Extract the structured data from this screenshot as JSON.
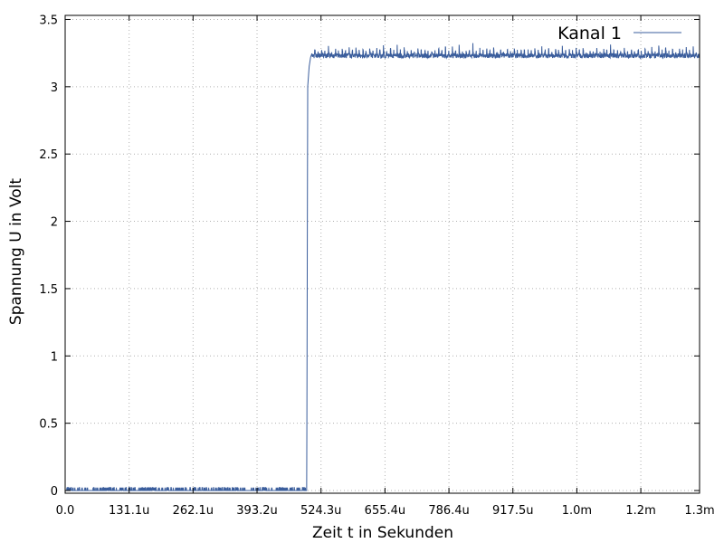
{
  "chart_data": {
    "type": "line",
    "xlabel": "Zeit t in Sekunden",
    "ylabel": "Spannung U in Volt",
    "xlim": [
      0,
      0.0013
    ],
    "ylim": [
      -0.02,
      3.53
    ],
    "x_ticks": [
      {
        "value": 0.0,
        "label": "0.0"
      },
      {
        "value": 0.0001311,
        "label": "131.1u"
      },
      {
        "value": 0.0002621,
        "label": "262.1u"
      },
      {
        "value": 0.0003932,
        "label": "393.2u"
      },
      {
        "value": 0.0005243,
        "label": "524.3u"
      },
      {
        "value": 0.0006554,
        "label": "655.4u"
      },
      {
        "value": 0.0007864,
        "label": "786.4u"
      },
      {
        "value": 0.0009175,
        "label": "917.5u"
      },
      {
        "value": 0.0010486,
        "label": "1.0m"
      },
      {
        "value": 0.0011796,
        "label": "1.2m"
      },
      {
        "value": 0.0013,
        "label": "1.3m"
      }
    ],
    "y_ticks": [
      {
        "value": 0,
        "label": "0"
      },
      {
        "value": 0.5,
        "label": "0.5"
      },
      {
        "value": 1,
        "label": "1"
      },
      {
        "value": 1.5,
        "label": "1.5"
      },
      {
        "value": 2,
        "label": "2"
      },
      {
        "value": 2.5,
        "label": "2.5"
      },
      {
        "value": 3,
        "label": "3"
      },
      {
        "value": 3.5,
        "label": "3.5"
      }
    ],
    "grid": true,
    "legend_position": "top-right",
    "series": [
      {
        "name": "Kanal 1",
        "color": "#3a5d9c",
        "x": [
          0,
          0.0001,
          0.0002,
          0.0003,
          0.000495,
          0.000497,
          0.0005,
          0.000503,
          0.000506,
          0.00052,
          0.0006,
          0.0007,
          0.0008,
          0.0009,
          0.001,
          0.0011,
          0.0012,
          0.0013
        ],
        "y": [
          0.0,
          0.0,
          0.0,
          0.0,
          0.0,
          3.0,
          3.15,
          3.22,
          3.25,
          3.23,
          3.23,
          3.23,
          3.23,
          3.23,
          3.23,
          3.23,
          3.23,
          3.23
        ]
      }
    ]
  }
}
